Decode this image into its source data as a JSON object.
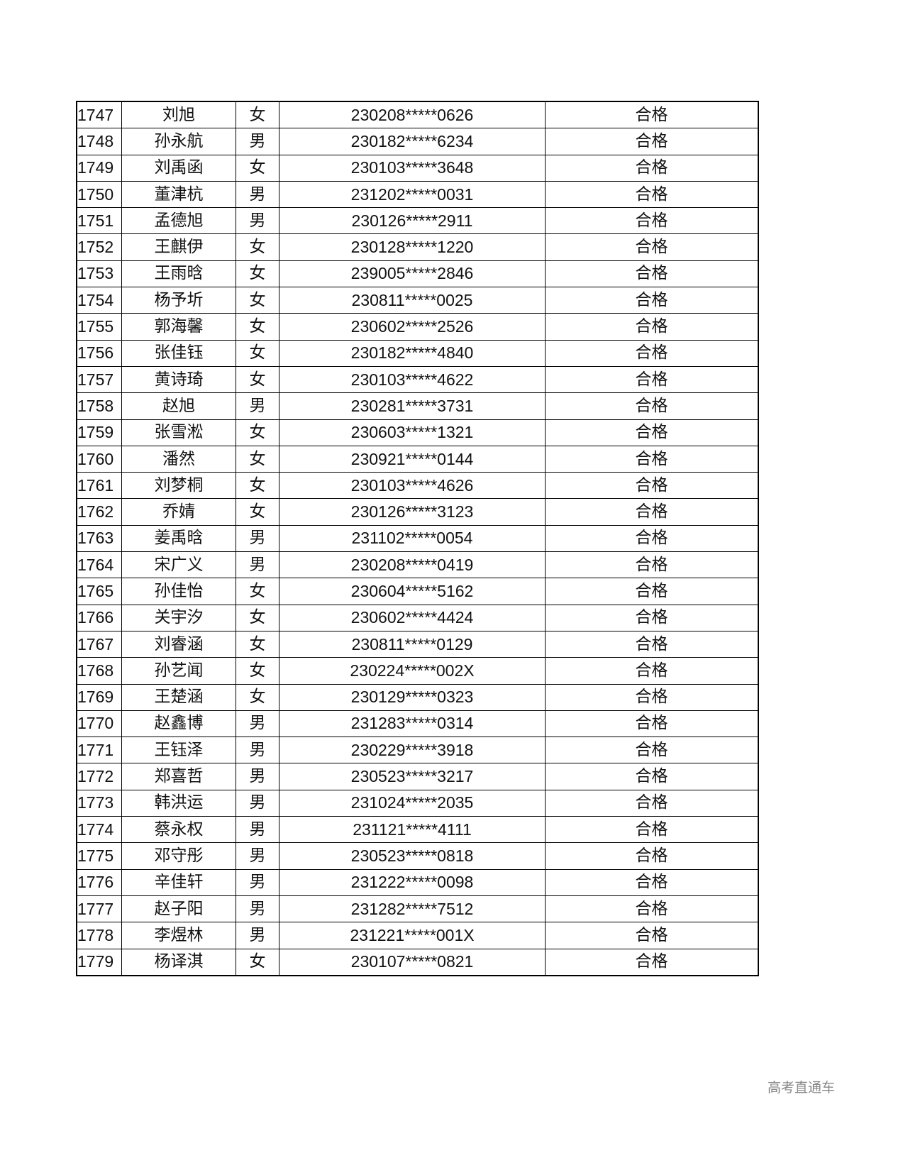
{
  "rows": [
    {
      "no": "1747",
      "name": "刘旭",
      "sex": "女",
      "id": "230208*****0626",
      "result": "合格"
    },
    {
      "no": "1748",
      "name": "孙永航",
      "sex": "男",
      "id": "230182*****6234",
      "result": "合格"
    },
    {
      "no": "1749",
      "name": "刘禹函",
      "sex": "女",
      "id": "230103*****3648",
      "result": "合格"
    },
    {
      "no": "1750",
      "name": "董津杭",
      "sex": "男",
      "id": "231202*****0031",
      "result": "合格"
    },
    {
      "no": "1751",
      "name": "孟德旭",
      "sex": "男",
      "id": "230126*****2911",
      "result": "合格"
    },
    {
      "no": "1752",
      "name": "王麒伊",
      "sex": "女",
      "id": "230128*****1220",
      "result": "合格"
    },
    {
      "no": "1753",
      "name": "王雨晗",
      "sex": "女",
      "id": "239005*****2846",
      "result": "合格"
    },
    {
      "no": "1754",
      "name": "杨予圻",
      "sex": "女",
      "id": "230811*****0025",
      "result": "合格"
    },
    {
      "no": "1755",
      "name": "郭海馨",
      "sex": "女",
      "id": "230602*****2526",
      "result": "合格"
    },
    {
      "no": "1756",
      "name": "张佳钰",
      "sex": "女",
      "id": "230182*****4840",
      "result": "合格"
    },
    {
      "no": "1757",
      "name": "黄诗琦",
      "sex": "女",
      "id": "230103*****4622",
      "result": "合格"
    },
    {
      "no": "1758",
      "name": "赵旭",
      "sex": "男",
      "id": "230281*****3731",
      "result": "合格"
    },
    {
      "no": "1759",
      "name": "张雪淞",
      "sex": "女",
      "id": "230603*****1321",
      "result": "合格"
    },
    {
      "no": "1760",
      "name": "潘然",
      "sex": "女",
      "id": "230921*****0144",
      "result": "合格"
    },
    {
      "no": "1761",
      "name": "刘梦桐",
      "sex": "女",
      "id": "230103*****4626",
      "result": "合格"
    },
    {
      "no": "1762",
      "name": "乔婧",
      "sex": "女",
      "id": "230126*****3123",
      "result": "合格"
    },
    {
      "no": "1763",
      "name": "姜禹晗",
      "sex": "男",
      "id": "231102*****0054",
      "result": "合格"
    },
    {
      "no": "1764",
      "name": "宋广义",
      "sex": "男",
      "id": "230208*****0419",
      "result": "合格"
    },
    {
      "no": "1765",
      "name": "孙佳怡",
      "sex": "女",
      "id": "230604*****5162",
      "result": "合格"
    },
    {
      "no": "1766",
      "name": "关宇汐",
      "sex": "女",
      "id": "230602*****4424",
      "result": "合格"
    },
    {
      "no": "1767",
      "name": "刘睿涵",
      "sex": "女",
      "id": "230811*****0129",
      "result": "合格"
    },
    {
      "no": "1768",
      "name": "孙艺闻",
      "sex": "女",
      "id": "230224*****002X",
      "result": "合格"
    },
    {
      "no": "1769",
      "name": "王楚涵",
      "sex": "女",
      "id": "230129*****0323",
      "result": "合格"
    },
    {
      "no": "1770",
      "name": "赵鑫博",
      "sex": "男",
      "id": "231283*****0314",
      "result": "合格"
    },
    {
      "no": "1771",
      "name": "王钰泽",
      "sex": "男",
      "id": "230229*****3918",
      "result": "合格"
    },
    {
      "no": "1772",
      "name": "郑喜哲",
      "sex": "男",
      "id": "230523*****3217",
      "result": "合格"
    },
    {
      "no": "1773",
      "name": "韩洪运",
      "sex": "男",
      "id": "231024*****2035",
      "result": "合格"
    },
    {
      "no": "1774",
      "name": "蔡永权",
      "sex": "男",
      "id": "231121*****4111",
      "result": "合格"
    },
    {
      "no": "1775",
      "name": "邓守彤",
      "sex": "男",
      "id": "230523*****0818",
      "result": "合格"
    },
    {
      "no": "1776",
      "name": "辛佳轩",
      "sex": "男",
      "id": "231222*****0098",
      "result": "合格"
    },
    {
      "no": "1777",
      "name": "赵子阳",
      "sex": "男",
      "id": "231282*****7512",
      "result": "合格"
    },
    {
      "no": "1778",
      "name": "李煜林",
      "sex": "男",
      "id": "231221*****001X",
      "result": "合格"
    },
    {
      "no": "1779",
      "name": "杨译淇",
      "sex": "女",
      "id": "230107*****0821",
      "result": "合格"
    }
  ],
  "watermark": "高考直通车"
}
